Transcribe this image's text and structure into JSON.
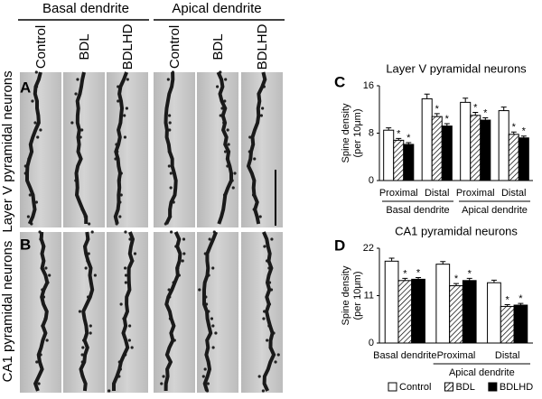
{
  "figure": {
    "column_groups": [
      "Basal dendrite",
      "Apical dendrite"
    ],
    "columns": [
      "Control",
      "BDL",
      "BDLHD",
      "Control",
      "BDL",
      "BDLHD"
    ],
    "rows": [
      "Layer V pyramidal neurons",
      "CA1 pyramidal neurons"
    ],
    "panels": [
      "A",
      "B",
      "C",
      "D"
    ]
  },
  "chart_data": [
    {
      "type": "bar",
      "title": "Layer V pyramidal neurons",
      "ylabel": [
        "Spine density",
        "(per 10μm)"
      ],
      "categories": [
        "Proximal",
        "Distal",
        "Proximal",
        "Distal"
      ],
      "group_labels": [
        "Basal dendrite",
        "Apical dendrite"
      ],
      "ylim": [
        0,
        16
      ],
      "yticks": [
        0,
        8,
        16
      ],
      "annotation": "*",
      "series": [
        {
          "color": "#ffffff",
          "values": [
            8.5,
            13.8,
            13.2,
            11.8
          ],
          "errors": [
            0.4,
            0.8,
            0.7,
            0.6
          ]
        },
        {
          "color": "#ffffff",
          "hatch": true,
          "values": [
            6.8,
            10.8,
            11.0,
            7.8
          ],
          "errors": [
            0.3,
            0.5,
            0.5,
            0.4
          ]
        },
        {
          "color": "#000000",
          "values": [
            6.1,
            9.2,
            10.2,
            7.2
          ],
          "errors": [
            0.3,
            0.4,
            0.4,
            0.3
          ]
        }
      ]
    },
    {
      "type": "bar",
      "title": "CA1 pyramidal neurons",
      "ylabel": [
        "Spine density",
        "(per 10μm)"
      ],
      "categories": [
        "Basal dendrite",
        "Proximal",
        "Distal"
      ],
      "group_labels": [
        "Apical dendrite"
      ],
      "ylim": [
        0,
        22
      ],
      "yticks": [
        0,
        11,
        22
      ],
      "annotation": "*",
      "legend": "bottom",
      "series": [
        {
          "name": "Control",
          "color": "#ffffff",
          "values": [
            19.0,
            18.3,
            14.0
          ],
          "errors": [
            0.7,
            0.6,
            0.6
          ]
        },
        {
          "name": "BDL",
          "color": "#ffffff",
          "hatch": true,
          "values": [
            14.5,
            13.3,
            8.5
          ],
          "errors": [
            0.5,
            0.5,
            0.4
          ]
        },
        {
          "name": "BDLHD",
          "color": "#000000",
          "values": [
            14.8,
            14.5,
            8.8
          ],
          "errors": [
            0.4,
            0.5,
            0.4
          ]
        }
      ]
    }
  ]
}
